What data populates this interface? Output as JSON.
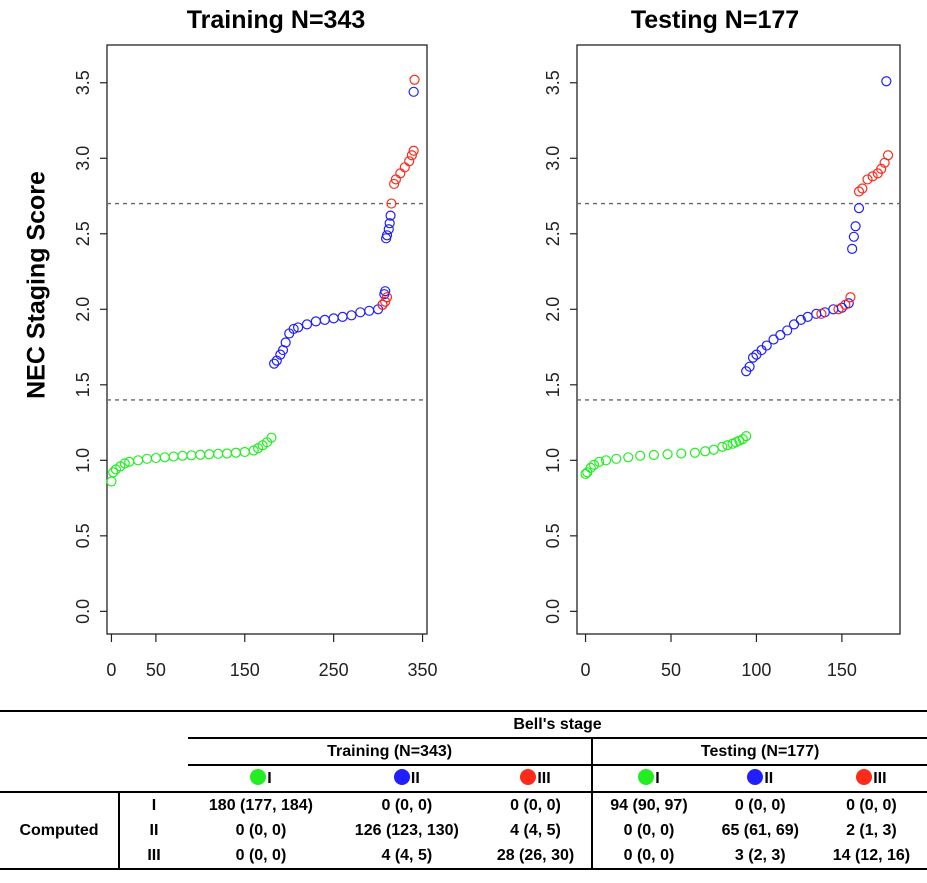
{
  "figure": {
    "ylabel": "NEC Staging  Score"
  },
  "chart_data": [
    {
      "type": "scatter",
      "title": "Training N=343",
      "ylabel": "NEC Staging  Score",
      "xlim": [
        -5,
        355
      ],
      "ylim": [
        -0.15,
        3.75
      ],
      "x_ticks": [
        "0",
        "50",
        "150",
        "250",
        "350"
      ],
      "x_tick_values": [
        0,
        50,
        150,
        250,
        350
      ],
      "y_ticks": [
        "0.0",
        "0.5",
        "1.0",
        "1.5",
        "2.0",
        "2.5",
        "3.0",
        "3.5"
      ],
      "y_tick_values": [
        0,
        0.5,
        1.0,
        1.5,
        2.0,
        2.5,
        3.0,
        3.5
      ],
      "reference_lines": [
        1.4,
        2.7
      ],
      "series": [
        {
          "stage": "I",
          "color": "#22ee22",
          "x": [
            0,
            2,
            5,
            10,
            15,
            20,
            30,
            40,
            50,
            60,
            70,
            80,
            90,
            100,
            110,
            120,
            130,
            140,
            150,
            160,
            165,
            170,
            175,
            180
          ],
          "y": [
            0.86,
            0.92,
            0.94,
            0.96,
            0.98,
            0.99,
            1.0,
            1.01,
            1.015,
            1.02,
            1.025,
            1.03,
            1.033,
            1.037,
            1.04,
            1.043,
            1.045,
            1.05,
            1.055,
            1.065,
            1.08,
            1.1,
            1.12,
            1.15
          ]
        },
        {
          "stage": "II",
          "color": "#1f1fff",
          "x": [
            183,
            186,
            190,
            193,
            196,
            200,
            205,
            210,
            220,
            230,
            240,
            250,
            260,
            270,
            280,
            290,
            300,
            305,
            307,
            308,
            309,
            310,
            312,
            313,
            314,
            340
          ],
          "y": [
            1.64,
            1.66,
            1.7,
            1.73,
            1.78,
            1.84,
            1.87,
            1.88,
            1.9,
            1.92,
            1.93,
            1.94,
            1.95,
            1.96,
            1.98,
            1.99,
            2.0,
            2.03,
            2.1,
            2.12,
            2.47,
            2.49,
            2.53,
            2.57,
            2.62,
            3.44
          ]
        },
        {
          "stage": "III",
          "color": "#ff2a1a",
          "x": [
            305,
            308,
            310,
            315,
            318,
            320,
            325,
            330,
            335,
            338,
            340,
            341
          ],
          "y": [
            2.03,
            2.05,
            2.08,
            2.7,
            2.83,
            2.86,
            2.9,
            2.94,
            2.98,
            3.02,
            3.05,
            3.52
          ]
        }
      ]
    },
    {
      "type": "scatter",
      "title": "Testing N=177",
      "ylabel": "NEC Staging  Score",
      "xlim": [
        -5,
        184
      ],
      "ylim": [
        -0.15,
        3.75
      ],
      "x_ticks": [
        "0",
        "50",
        "100",
        "150"
      ],
      "x_tick_values": [
        0,
        50,
        100,
        150
      ],
      "y_ticks": [
        "0.0",
        "0.5",
        "1.0",
        "1.5",
        "2.0",
        "2.5",
        "3.0",
        "3.5"
      ],
      "y_tick_values": [
        0,
        0.5,
        1.0,
        1.5,
        2.0,
        2.5,
        3.0,
        3.5
      ],
      "reference_lines": [
        1.4,
        2.7
      ],
      "series": [
        {
          "stage": "I",
          "color": "#22ee22",
          "x": [
            0,
            1,
            3,
            5,
            8,
            12,
            18,
            25,
            32,
            40,
            48,
            56,
            64,
            70,
            75,
            80,
            83,
            86,
            88,
            90,
            92,
            94
          ],
          "y": [
            0.91,
            0.92,
            0.95,
            0.97,
            0.99,
            1.0,
            1.01,
            1.02,
            1.03,
            1.035,
            1.04,
            1.045,
            1.05,
            1.06,
            1.07,
            1.09,
            1.1,
            1.11,
            1.12,
            1.13,
            1.14,
            1.16
          ]
        },
        {
          "stage": "II",
          "color": "#1f1fff",
          "x": [
            94,
            96,
            98,
            100,
            103,
            106,
            110,
            114,
            118,
            122,
            126,
            130,
            135,
            140,
            145,
            150,
            154,
            156,
            157,
            158,
            160,
            176
          ],
          "y": [
            1.59,
            1.62,
            1.68,
            1.7,
            1.73,
            1.76,
            1.8,
            1.83,
            1.86,
            1.9,
            1.93,
            1.95,
            1.97,
            1.98,
            2.0,
            2.01,
            2.04,
            2.4,
            2.48,
            2.55,
            2.67,
            3.51
          ]
        },
        {
          "stage": "III",
          "color": "#ff2a1a",
          "x": [
            138,
            148,
            152,
            155,
            160,
            162,
            165,
            168,
            171,
            173,
            175,
            177
          ],
          "y": [
            1.97,
            2.0,
            2.03,
            2.08,
            2.78,
            2.8,
            2.86,
            2.88,
            2.9,
            2.93,
            2.97,
            3.02
          ]
        }
      ]
    }
  ],
  "table": {
    "bells_stage": "Bell's stage",
    "training": "Training (N=343)",
    "testing": "Testing (N=177)",
    "stages": [
      {
        "label": "I",
        "color": "#22ee22"
      },
      {
        "label": "II",
        "color": "#1f1fff"
      },
      {
        "label": "III",
        "color": "#ff2a1a"
      }
    ],
    "computed": "Computed",
    "rows": [
      {
        "label": "I",
        "cells": [
          "180 (177, 184)",
          "0 (0, 0)",
          "0 (0, 0)",
          "94 (90, 97)",
          "0 (0, 0)",
          "0 (0, 0)"
        ]
      },
      {
        "label": "II",
        "cells": [
          "0 (0, 0)",
          "126 (123, 130)",
          "4 (4, 5)",
          "0 (0, 0)",
          "65 (61, 69)",
          "2 (1, 3)"
        ]
      },
      {
        "label": "III",
        "cells": [
          "0 (0, 0)",
          "4 (4, 5)",
          "28 (26, 30)",
          "0 (0, 0)",
          "3 (2, 3)",
          "14 (12, 16)"
        ]
      }
    ]
  }
}
